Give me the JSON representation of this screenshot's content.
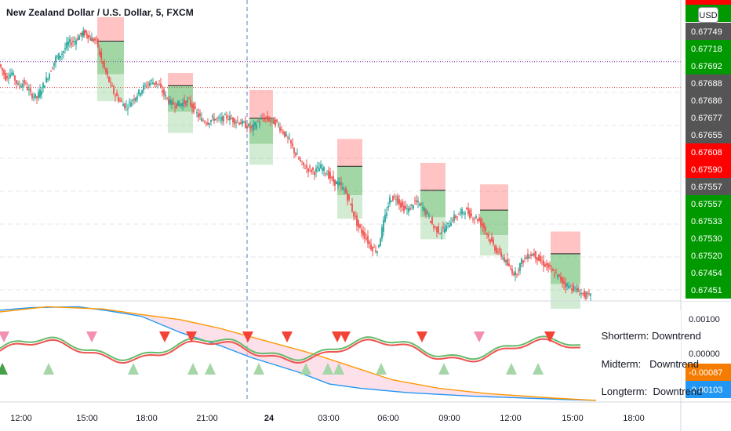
{
  "header": {
    "title": "New Zealand Dollar / U.S. Dollar, 5, FXCM",
    "currency_badge": "USD"
  },
  "colors": {
    "up": "#26a69a",
    "down": "#ef5350",
    "green_label": "#009900",
    "red_label": "#ff0000",
    "gray_label": "#555555",
    "orange_label": "#f57c00",
    "blue_label": "#2196f3",
    "tp_box": "#4caf50",
    "sl_box": "#ff5252"
  },
  "chart_data": {
    "type": "candlestick",
    "price_axis": {
      "ylim": [
        0.6744,
        0.6779
      ],
      "labels": [
        {
          "value": "0.67749",
          "color": "gray"
        },
        {
          "value": "0.67718",
          "color": "green"
        },
        {
          "value": "0.67692",
          "color": "green"
        },
        {
          "value": "0.67688",
          "color": "gray"
        },
        {
          "value": "0.67686",
          "color": "gray"
        },
        {
          "value": "0.67677",
          "color": "gray"
        },
        {
          "value": "0.67655",
          "color": "gray"
        },
        {
          "value": "0.67608",
          "color": "red"
        },
        {
          "value": "0.67590",
          "color": "red"
        },
        {
          "value": "0.67557",
          "color": "gray"
        },
        {
          "value": "0.67557",
          "color": "green"
        },
        {
          "value": "0.67533",
          "color": "green"
        },
        {
          "value": "0.67530",
          "color": "green"
        },
        {
          "value": "0.67520",
          "color": "green"
        },
        {
          "value": "0.67454",
          "color": "green"
        },
        {
          "value": "0.67451",
          "color": "green"
        }
      ]
    },
    "time_axis": [
      "12:00",
      "15:00",
      "18:00",
      "21:00",
      "24",
      "03:00",
      "06:00",
      "09:00",
      "12:00",
      "15:00",
      "18:00"
    ],
    "price_path": [
      [
        0,
        0.67715
      ],
      [
        8,
        0.677
      ],
      [
        16,
        0.67705
      ],
      [
        24,
        0.6769
      ],
      [
        32,
        0.67694
      ],
      [
        40,
        0.6768
      ],
      [
        48,
        0.67676
      ],
      [
        56,
        0.6769
      ],
      [
        64,
        0.67705
      ],
      [
        72,
        0.67722
      ],
      [
        80,
        0.67728
      ],
      [
        88,
        0.6774
      ],
      [
        96,
        0.67742
      ],
      [
        104,
        0.6775
      ],
      [
        110,
        0.67752
      ],
      [
        116,
        0.67745
      ],
      [
        124,
        0.67742
      ],
      [
        130,
        0.6772
      ],
      [
        138,
        0.677
      ],
      [
        146,
        0.67682
      ],
      [
        154,
        0.67672
      ],
      [
        162,
        0.67665
      ],
      [
        170,
        0.67674
      ],
      [
        178,
        0.67682
      ],
      [
        186,
        0.6769
      ],
      [
        194,
        0.67695
      ],
      [
        202,
        0.67692
      ],
      [
        210,
        0.6768
      ],
      [
        218,
        0.6767
      ],
      [
        226,
        0.67668
      ],
      [
        234,
        0.6767
      ],
      [
        242,
        0.67672
      ],
      [
        250,
        0.6766
      ],
      [
        258,
        0.6765
      ],
      [
        266,
        0.67648
      ],
      [
        274,
        0.67652
      ],
      [
        282,
        0.6765
      ],
      [
        290,
        0.67654
      ],
      [
        298,
        0.6765
      ],
      [
        306,
        0.67648
      ],
      [
        314,
        0.67644
      ],
      [
        322,
        0.6764
      ],
      [
        330,
        0.67648
      ],
      [
        338,
        0.67652
      ],
      [
        346,
        0.6765
      ],
      [
        354,
        0.67646
      ],
      [
        362,
        0.67636
      ],
      [
        370,
        0.67625
      ],
      [
        378,
        0.6761
      ],
      [
        386,
        0.67598
      ],
      [
        394,
        0.67593
      ],
      [
        402,
        0.6759
      ],
      [
        410,
        0.67595
      ],
      [
        418,
        0.67588
      ],
      [
        426,
        0.67578
      ],
      [
        434,
        0.67575
      ],
      [
        442,
        0.67565
      ],
      [
        450,
        0.67545
      ],
      [
        458,
        0.67525
      ],
      [
        466,
        0.67515
      ],
      [
        474,
        0.67502
      ],
      [
        482,
        0.67498
      ],
      [
        490,
        0.6753
      ],
      [
        498,
        0.67558
      ],
      [
        506,
        0.6756
      ],
      [
        514,
        0.67548
      ],
      [
        522,
        0.67545
      ],
      [
        530,
        0.67555
      ],
      [
        538,
        0.6755
      ],
      [
        546,
        0.6754
      ],
      [
        554,
        0.67525
      ],
      [
        562,
        0.6752
      ],
      [
        570,
        0.67525
      ],
      [
        578,
        0.67535
      ],
      [
        586,
        0.6754
      ],
      [
        594,
        0.67545
      ],
      [
        602,
        0.67538
      ],
      [
        610,
        0.67535
      ],
      [
        618,
        0.67525
      ],
      [
        626,
        0.6751
      ],
      [
        634,
        0.67498
      ],
      [
        642,
        0.6749
      ],
      [
        650,
        0.67478
      ],
      [
        658,
        0.6747
      ],
      [
        666,
        0.67485
      ],
      [
        674,
        0.67492
      ],
      [
        682,
        0.67494
      ],
      [
        690,
        0.67485
      ],
      [
        698,
        0.6748
      ],
      [
        706,
        0.67472
      ],
      [
        714,
        0.67466
      ],
      [
        722,
        0.67458
      ],
      [
        730,
        0.67455
      ],
      [
        738,
        0.6745
      ],
      [
        746,
        0.67446
      ],
      [
        754,
        0.67444
      ]
    ],
    "trade_boxes": [
      {
        "x": [
          124,
          158
        ],
        "entry": 0.67742,
        "stop": 0.6777,
        "target": 0.67672
      },
      {
        "x": [
          214,
          246
        ],
        "entry": 0.6769,
        "stop": 0.67705,
        "target": 0.67635
      },
      {
        "x": [
          318,
          348
        ],
        "entry": 0.67652,
        "stop": 0.67685,
        "target": 0.67598
      },
      {
        "x": [
          430,
          462
        ],
        "entry": 0.67596,
        "stop": 0.67628,
        "target": 0.67535
      },
      {
        "x": [
          536,
          568
        ],
        "entry": 0.67568,
        "stop": 0.676,
        "target": 0.67511
      },
      {
        "x": [
          612,
          648
        ],
        "entry": 0.67545,
        "stop": 0.67575,
        "target": 0.67492
      },
      {
        "x": [
          702,
          740
        ],
        "entry": 0.67494,
        "stop": 0.6752,
        "target": 0.6743
      }
    ],
    "horizontal_levels": [
      {
        "price": 0.67718,
        "style": "dotted",
        "color": "#7b1fa2"
      },
      {
        "price": 0.67688,
        "style": "dotted",
        "color": "#d32f2f"
      }
    ],
    "crosshair_x": 315,
    "indicator": {
      "ylim": [
        -0.0012,
        0.0011
      ],
      "axis_labels": [
        "0.00100",
        "0.00000"
      ],
      "value_labels": [
        {
          "value": "-0.00087",
          "color": "orange"
        },
        {
          "value": "-0.00103",
          "color": "blue"
        }
      ],
      "series": [
        {
          "color": "#2196f3",
          "values": [
            [
              0,
              0.00092
            ],
            [
              40,
              0.00098
            ],
            [
              100,
              0.001
            ],
            [
              140,
              0.0009
            ],
            [
              180,
              0.00078
            ],
            [
              230,
              0.0004
            ],
            [
              280,
              0.0001
            ],
            [
              320,
              -0.00018
            ],
            [
              380,
              -0.00052
            ],
            [
              420,
              -0.0008
            ],
            [
              460,
              -0.0009
            ],
            [
              520,
              -0.001
            ],
            [
              600,
              -0.00108
            ],
            [
              720,
              -0.00116
            ],
            [
              760,
              -0.00118
            ]
          ]
        },
        {
          "color": "#ff9800",
          "values": [
            [
              0,
              0.00088
            ],
            [
              60,
              0.001
            ],
            [
              130,
              0.00095
            ],
            [
              180,
              0.00082
            ],
            [
              230,
              0.0007
            ],
            [
              280,
              0.0005
            ],
            [
              340,
              0.0002
            ],
            [
              400,
              -0.0001
            ],
            [
              450,
              -0.0004
            ],
            [
              500,
              -0.0007
            ],
            [
              560,
              -0.0009
            ],
            [
              620,
              -0.00102
            ],
            [
              700,
              -0.00112
            ],
            [
              760,
              -0.00118
            ]
          ]
        }
      ],
      "down_arrows": [
        {
          "x": 5,
          "strong": false
        },
        {
          "x": 117,
          "strong": false
        },
        {
          "x": 210,
          "strong": true
        },
        {
          "x": 244,
          "strong": true
        },
        {
          "x": 316,
          "strong": true
        },
        {
          "x": 366,
          "strong": true
        },
        {
          "x": 430,
          "strong": true
        },
        {
          "x": 440,
          "strong": true
        },
        {
          "x": 538,
          "strong": true
        },
        {
          "x": 611,
          "strong": false
        },
        {
          "x": 701,
          "strong": true
        }
      ],
      "up_arrows": [
        3,
        62,
        170,
        246,
        268,
        330,
        390,
        418,
        432,
        486,
        566,
        652,
        686
      ]
    },
    "trend_panel": [
      {
        "label": "Shortterm:",
        "value": "Downtrend"
      },
      {
        "label": "Midterm:",
        "value": "Downtrend"
      },
      {
        "label": "Longterm:",
        "value": "Downtrend"
      }
    ]
  }
}
